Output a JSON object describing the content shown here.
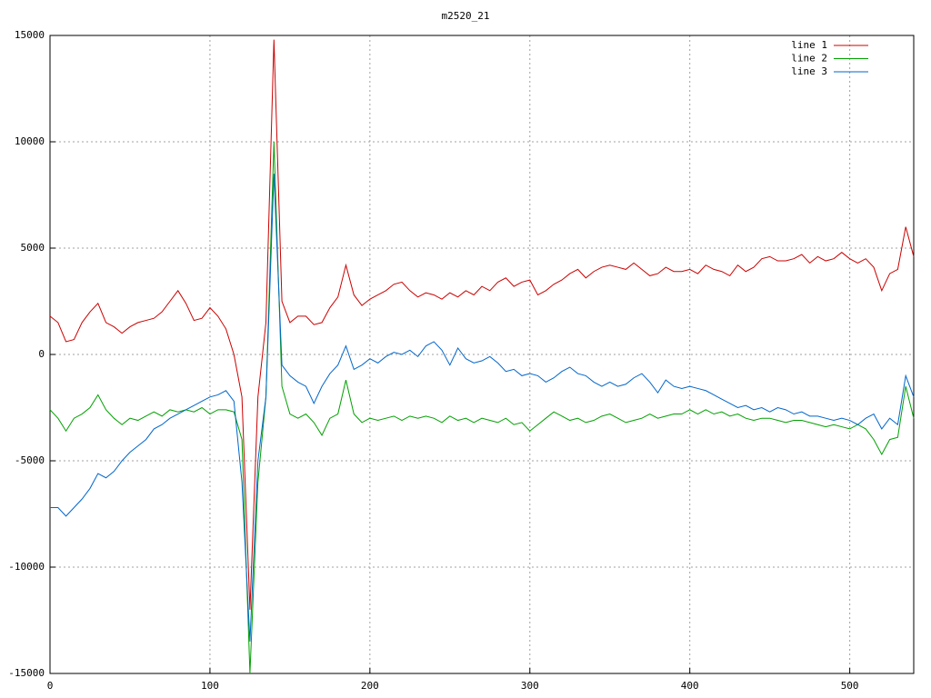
{
  "chart_data": {
    "type": "line",
    "title": "m2520_21",
    "x": [
      0,
      5,
      10,
      15,
      20,
      25,
      30,
      35,
      40,
      45,
      50,
      55,
      60,
      65,
      70,
      75,
      80,
      85,
      90,
      95,
      100,
      105,
      110,
      115,
      120,
      125,
      130,
      135,
      140,
      145,
      150,
      155,
      160,
      165,
      170,
      175,
      180,
      185,
      190,
      195,
      200,
      205,
      210,
      215,
      220,
      225,
      230,
      235,
      240,
      245,
      250,
      255,
      260,
      265,
      270,
      275,
      280,
      285,
      290,
      295,
      300,
      305,
      310,
      315,
      320,
      325,
      330,
      335,
      340,
      345,
      350,
      355,
      360,
      365,
      370,
      375,
      380,
      385,
      390,
      395,
      400,
      405,
      410,
      415,
      420,
      425,
      430,
      435,
      440,
      445,
      450,
      455,
      460,
      465,
      470,
      475,
      480,
      485,
      490,
      495,
      500,
      505,
      510,
      515,
      520,
      525,
      530,
      535,
      540
    ],
    "series": [
      {
        "name": "line 1",
        "color": "#cc0000",
        "values": [
          1800,
          1500,
          600,
          700,
          1500,
          2000,
          2400,
          1500,
          1300,
          1000,
          1300,
          1500,
          1600,
          1700,
          2000,
          2500,
          3000,
          2400,
          1600,
          1700,
          2200,
          1800,
          1200,
          0,
          -2000,
          -12000,
          -2000,
          1500,
          14800,
          2500,
          1500,
          1800,
          1800,
          1400,
          1500,
          2200,
          2700,
          4200,
          2800,
          2300,
          2600,
          2800,
          3000,
          3300,
          3400,
          3000,
          2700,
          2900,
          2800,
          2600,
          2900,
          2700,
          3000,
          2800,
          3200,
          3000,
          3400,
          3600,
          3200,
          3400,
          3500,
          2800,
          3000,
          3300,
          3500,
          3800,
          4000,
          3600,
          3900,
          4100,
          4200,
          4100,
          4000,
          4300,
          4000,
          3700,
          3800,
          4100,
          3900,
          3900,
          4000,
          3800,
          4200,
          4000,
          3900,
          3700,
          4200,
          3900,
          4100,
          4500,
          4600,
          4400,
          4400,
          4500,
          4700,
          4300,
          4600,
          4400,
          4500,
          4800,
          4500,
          4300,
          4500,
          4100,
          3000,
          3800,
          4000,
          6000,
          4600
        ]
      },
      {
        "name": "line 2",
        "color": "#00a000",
        "values": [
          -2600,
          -3000,
          -3600,
          -3000,
          -2800,
          -2500,
          -1900,
          -2600,
          -3000,
          -3300,
          -3000,
          -3100,
          -2900,
          -2700,
          -2900,
          -2600,
          -2700,
          -2600,
          -2700,
          -2500,
          -2800,
          -2600,
          -2600,
          -2700,
          -4000,
          -15000,
          -6000,
          -2000,
          10000,
          -1500,
          -2800,
          -3000,
          -2800,
          -3200,
          -3800,
          -3000,
          -2800,
          -1200,
          -2800,
          -3200,
          -3000,
          -3100,
          -3000,
          -2900,
          -3100,
          -2900,
          -3000,
          -2900,
          -3000,
          -3200,
          -2900,
          -3100,
          -3000,
          -3200,
          -3000,
          -3100,
          -3200,
          -3000,
          -3300,
          -3200,
          -3600,
          -3300,
          -3000,
          -2700,
          -2900,
          -3100,
          -3000,
          -3200,
          -3100,
          -2900,
          -2800,
          -3000,
          -3200,
          -3100,
          -3000,
          -2800,
          -3000,
          -2900,
          -2800,
          -2800,
          -2600,
          -2800,
          -2600,
          -2800,
          -2700,
          -2900,
          -2800,
          -3000,
          -3100,
          -3000,
          -3000,
          -3100,
          -3200,
          -3100,
          -3100,
          -3200,
          -3300,
          -3400,
          -3300,
          -3400,
          -3500,
          -3300,
          -3500,
          -4000,
          -4700,
          -4000,
          -3900,
          -1500,
          -3000
        ]
      },
      {
        "name": "line 3",
        "color": "#0066cc",
        "values": [
          -7200,
          -7200,
          -7600,
          -7200,
          -6800,
          -6300,
          -5600,
          -5800,
          -5500,
          -5000,
          -4600,
          -4300,
          -4000,
          -3500,
          -3300,
          -3000,
          -2800,
          -2600,
          -2400,
          -2200,
          -2000,
          -1900,
          -1700,
          -2200,
          -6000,
          -13500,
          -5000,
          -2000,
          8500,
          -500,
          -1000,
          -1300,
          -1500,
          -2300,
          -1500,
          -900,
          -500,
          400,
          -700,
          -500,
          -200,
          -400,
          -100,
          100,
          0,
          200,
          -100,
          400,
          600,
          200,
          -500,
          300,
          -200,
          -400,
          -300,
          -100,
          -400,
          -800,
          -700,
          -1000,
          -900,
          -1000,
          -1300,
          -1100,
          -800,
          -600,
          -900,
          -1000,
          -1300,
          -1500,
          -1300,
          -1500,
          -1400,
          -1100,
          -900,
          -1300,
          -1800,
          -1200,
          -1500,
          -1600,
          -1500,
          -1600,
          -1700,
          -1900,
          -2100,
          -2300,
          -2500,
          -2400,
          -2600,
          -2500,
          -2700,
          -2500,
          -2600,
          -2800,
          -2700,
          -2900,
          -2900,
          -3000,
          -3100,
          -3000,
          -3100,
          -3300,
          -3000,
          -2800,
          -3500,
          -3000,
          -3300,
          -1000,
          -2000
        ]
      }
    ],
    "xlim": [
      0,
      540
    ],
    "xticks": [
      0,
      100,
      200,
      300,
      400,
      500
    ],
    "ylim": [
      -15000,
      15000
    ],
    "yticks": [
      -15000,
      -10000,
      -5000,
      0,
      5000,
      10000,
      15000
    ],
    "grid": true,
    "legend": "top-right"
  }
}
